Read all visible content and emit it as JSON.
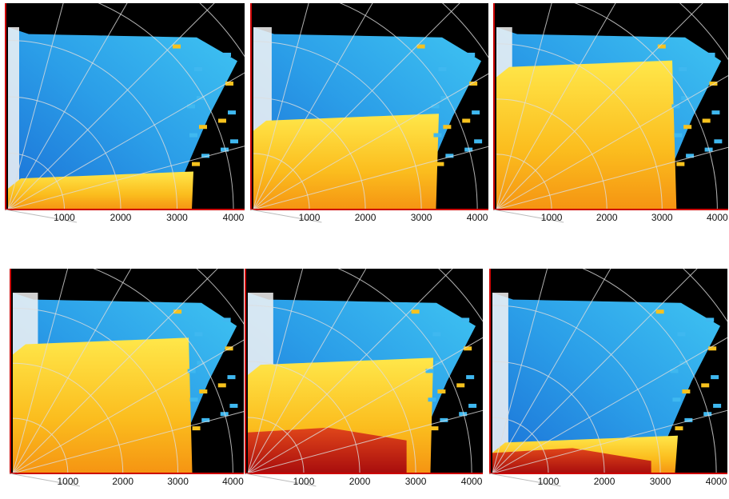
{
  "panels": [
    {
      "ticks": [
        1000,
        2000,
        3000,
        4000
      ]
    },
    {
      "ticks": [
        1000,
        2000,
        3000,
        4000
      ]
    },
    {
      "ticks": [
        1000,
        2000,
        3000,
        4000
      ]
    },
    {
      "ticks": [
        1000,
        2000,
        3000,
        4000
      ]
    },
    {
      "ticks": [
        1000,
        2000,
        3000,
        4000
      ]
    },
    {
      "ticks": [
        1000,
        2000,
        3000,
        4000
      ]
    }
  ]
}
